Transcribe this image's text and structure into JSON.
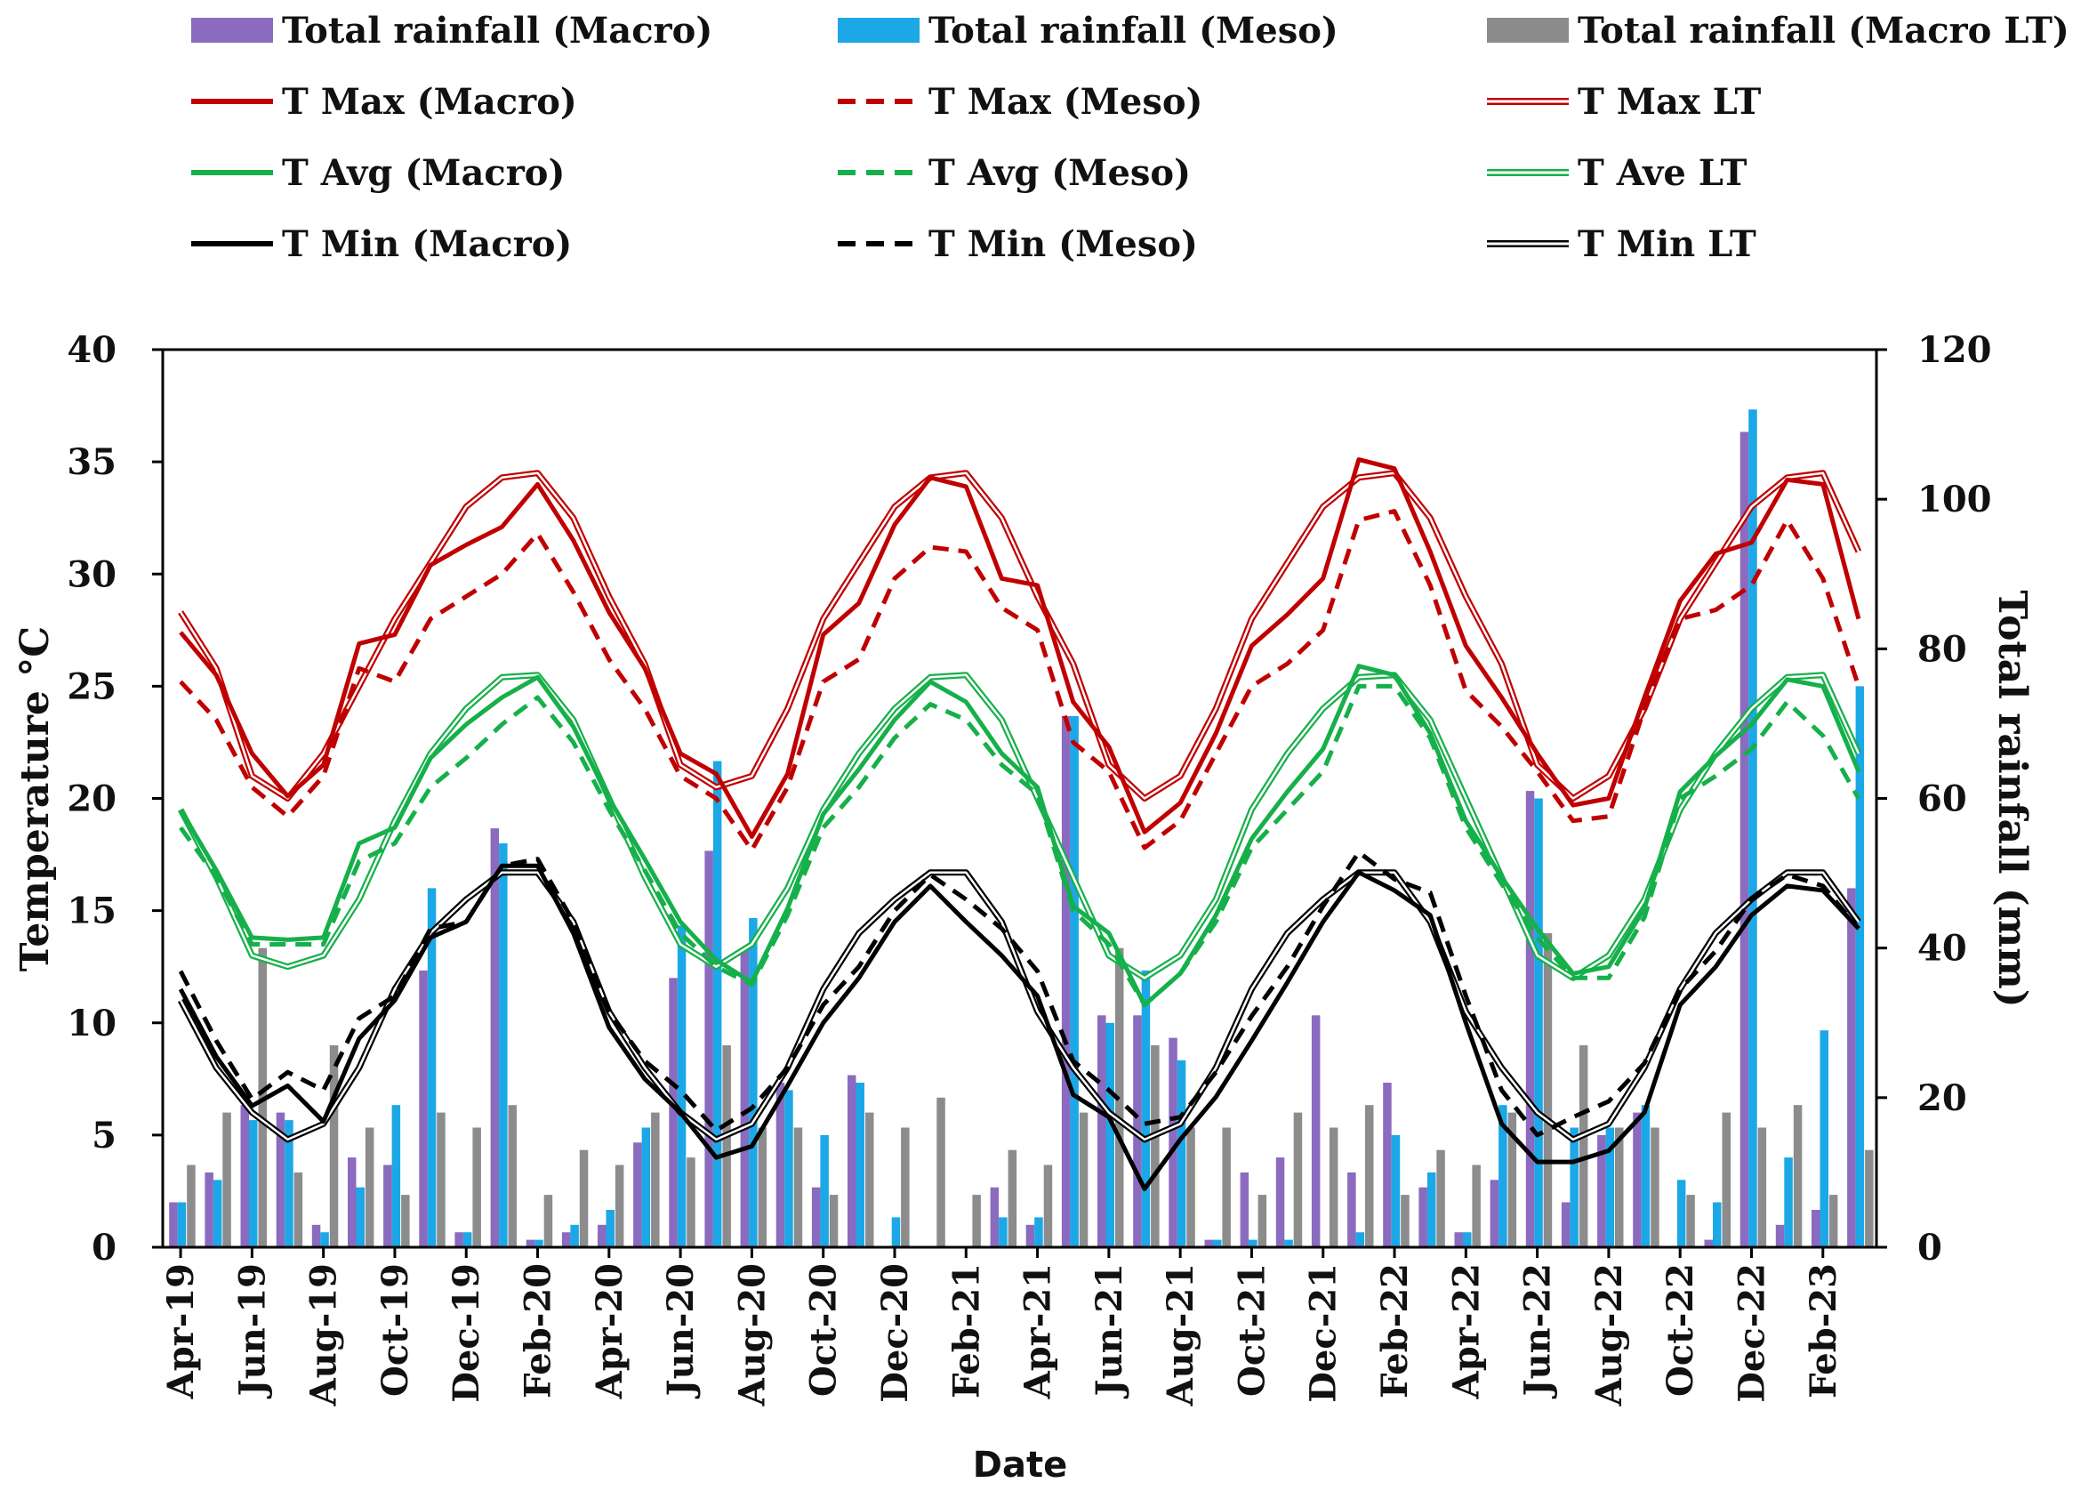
{
  "chart_data": {
    "type": "bar+line",
    "title": "",
    "xlabel": "Date",
    "ylabel_left": "Temperature °C",
    "ylabel_right": "Total rainfall (mm)",
    "ylim_left": [
      0,
      40
    ],
    "ylim_right": [
      0,
      120
    ],
    "yticks_left": [
      "0",
      "5",
      "10",
      "15",
      "20",
      "25",
      "30",
      "35",
      "40"
    ],
    "yticks_right": [
      "0",
      "20",
      "40",
      "60",
      "80",
      "100",
      "120"
    ],
    "categories": [
      "Apr-19",
      "May-19",
      "Jun-19",
      "Jul-19",
      "Aug-19",
      "Sep-19",
      "Oct-19",
      "Nov-19",
      "Dec-19",
      "Jan-20",
      "Feb-20",
      "Mar-20",
      "Apr-20",
      "May-20",
      "Jun-20",
      "Jul-20",
      "Aug-20",
      "Sep-20",
      "Oct-20",
      "Nov-20",
      "Dec-20",
      "Jan-21",
      "Feb-21",
      "Mar-21",
      "Apr-21",
      "May-21",
      "Jun-21",
      "Jul-21",
      "Aug-21",
      "Sep-21",
      "Oct-21",
      "Nov-21",
      "Dec-21",
      "Jan-22",
      "Feb-22",
      "Mar-22",
      "Apr-22",
      "May-22",
      "Jun-22",
      "Jul-22",
      "Aug-22",
      "Sep-22",
      "Oct-22",
      "Nov-22",
      "Dec-22",
      "Jan-23",
      "Feb-23",
      "Mar-23"
    ],
    "x_tick_labels": [
      "Apr-19",
      "Jun-19",
      "Aug-19",
      "Oct-19",
      "Dec-19",
      "Feb-20",
      "Apr-20",
      "Jun-20",
      "Aug-20",
      "Oct-20",
      "Dec-20",
      "Feb-21",
      "Apr-21",
      "Jun-21",
      "Aug-21",
      "Oct-21",
      "Dec-21",
      "Feb-22",
      "Apr-22",
      "Jun-22",
      "Aug-22",
      "Oct-22",
      "Dec-22",
      "Feb-23"
    ],
    "grid": false,
    "legend_position": "top",
    "bar_series": [
      {
        "name": "Total rainfall (Macro)",
        "color": "#8a6bbf",
        "axis": "right",
        "values": [
          6,
          10,
          19,
          18,
          3,
          12,
          11,
          37,
          2,
          56,
          1,
          2,
          3,
          14,
          36,
          53,
          40,
          22,
          8,
          23,
          0,
          0,
          0,
          8,
          3,
          71,
          31,
          31,
          28,
          1,
          10,
          12,
          31,
          10,
          22,
          8,
          2,
          9,
          61,
          6,
          15,
          18,
          0,
          1,
          109,
          3,
          5,
          48
        ]
      },
      {
        "name": "Total rainfall (Meso)",
        "color": "#1ca7e6",
        "axis": "right",
        "values": [
          6,
          9,
          17,
          17,
          2,
          8,
          19,
          48,
          2,
          54,
          1,
          3,
          5,
          16,
          43,
          65,
          44,
          21,
          15,
          22,
          4,
          0,
          0,
          4,
          4,
          71,
          30,
          37,
          25,
          1,
          1,
          1,
          0,
          2,
          15,
          10,
          2,
          19,
          60,
          16,
          16,
          19,
          9,
          6,
          112,
          12,
          29,
          75
        ]
      },
      {
        "name": "Total rainfall (Macro LT)",
        "color": "#8c8c8c",
        "axis": "right",
        "values": [
          11,
          18,
          40,
          10,
          27,
          16,
          7,
          18,
          16,
          19,
          7,
          13,
          11,
          18,
          12,
          27,
          16,
          16,
          7,
          18,
          16,
          20,
          7,
          13,
          11,
          18,
          40,
          27,
          16,
          16,
          7,
          18,
          16,
          19,
          7,
          13,
          11,
          18,
          42,
          27,
          16,
          16,
          7,
          18,
          16,
          19,
          7,
          13
        ]
      }
    ],
    "line_series": [
      {
        "name": "T Max (Macro)",
        "color": "#c00000",
        "style": "solid",
        "values": [
          27.4,
          25.5,
          22.0,
          20.1,
          21.5,
          26.9,
          27.3,
          30.4,
          31.3,
          32.1,
          34.0,
          31.5,
          28.3,
          25.8,
          22.0,
          21.1,
          18.3,
          21.1,
          27.3,
          28.7,
          32.2,
          34.3,
          33.9,
          29.8,
          29.5,
          24.3,
          22.3,
          18.5,
          19.8,
          22.9,
          26.8,
          28.2,
          29.8,
          35.1,
          34.7,
          31.0,
          26.8,
          24.5,
          22.0,
          19.7,
          20.0,
          24.5,
          28.8,
          30.9,
          31.4,
          34.2,
          34.0,
          28.0
        ]
      },
      {
        "name": "T Max (Meso)",
        "color": "#c00000",
        "style": "dashed",
        "values": [
          25.2,
          23.5,
          20.5,
          19.2,
          21.0,
          25.8,
          25.2,
          28.0,
          29.0,
          30.0,
          31.8,
          29.2,
          26.2,
          24.0,
          21.0,
          20.0,
          17.7,
          20.5,
          25.2,
          26.2,
          29.8,
          31.2,
          31.0,
          28.5,
          27.5,
          22.5,
          21.2,
          17.8,
          19.0,
          22.0,
          25.0,
          26.0,
          27.5,
          32.4,
          32.8,
          29.5,
          24.8,
          23.2,
          21.2,
          19.0,
          19.2,
          24.0,
          28.0,
          28.4,
          29.5,
          32.4,
          29.8,
          25.0
        ]
      },
      {
        "name": "T Max LT",
        "color": "#c00000",
        "style": "double",
        "values": [
          28.3,
          25.8,
          21.0,
          20.0,
          22.0,
          25.0,
          28.0,
          30.5,
          33.0,
          34.3,
          34.5,
          32.5,
          29.0,
          26.0,
          21.5,
          20.5,
          21.0,
          24.0,
          28.0,
          30.5,
          33.0,
          34.3,
          34.5,
          32.5,
          29.0,
          26.0,
          21.5,
          20.0,
          21.0,
          24.0,
          28.0,
          30.5,
          33.0,
          34.3,
          34.5,
          32.5,
          29.0,
          26.0,
          21.5,
          20.0,
          21.0,
          24.0,
          28.0,
          30.5,
          33.0,
          34.3,
          34.5,
          31.0
        ]
      },
      {
        "name": "T Avg (Macro)",
        "color": "#16b04a",
        "style": "solid",
        "values": [
          19.5,
          16.8,
          13.8,
          13.7,
          13.8,
          18.0,
          18.7,
          21.8,
          23.3,
          24.5,
          25.4,
          23.2,
          20.0,
          17.3,
          14.5,
          12.8,
          11.8,
          15.1,
          19.3,
          21.3,
          23.5,
          25.2,
          24.3,
          22.0,
          20.5,
          15.2,
          14.0,
          10.8,
          12.2,
          14.8,
          18.2,
          20.3,
          22.2,
          25.9,
          25.5,
          22.9,
          19.0,
          16.5,
          14.2,
          12.2,
          12.5,
          15.1,
          20.3,
          21.9,
          23.3,
          25.3,
          25.0,
          21.2
        ]
      },
      {
        "name": "T Avg (Meso)",
        "color": "#16b04a",
        "style": "dashed",
        "values": [
          18.7,
          16.5,
          13.5,
          13.5,
          13.5,
          17.2,
          18.0,
          20.5,
          21.8,
          23.3,
          24.5,
          22.5,
          19.5,
          16.8,
          14.0,
          12.5,
          11.7,
          14.8,
          18.7,
          20.5,
          22.7,
          24.2,
          23.5,
          21.5,
          20.2,
          15.0,
          13.5,
          10.8,
          12.2,
          14.5,
          17.8,
          19.5,
          21.2,
          25.0,
          25.0,
          22.7,
          18.7,
          16.2,
          13.8,
          12.0,
          12.0,
          14.7,
          20.0,
          21.0,
          22.2,
          24.3,
          22.8,
          20.0
        ]
      },
      {
        "name": "T Ave LT",
        "color": "#16b04a",
        "style": "double",
        "values": [
          19.5,
          16.5,
          13.0,
          12.5,
          13.0,
          15.5,
          19.0,
          22.0,
          24.0,
          25.4,
          25.5,
          23.5,
          20.0,
          16.5,
          13.5,
          12.5,
          13.5,
          16.0,
          19.5,
          22.0,
          24.0,
          25.4,
          25.5,
          23.5,
          20.0,
          16.5,
          13.0,
          12.0,
          13.0,
          15.5,
          19.5,
          22.0,
          24.0,
          25.4,
          25.5,
          23.5,
          20.0,
          16.5,
          13.0,
          12.0,
          13.0,
          15.5,
          19.5,
          22.0,
          24.0,
          25.4,
          25.5,
          22.0
        ]
      },
      {
        "name": "T Min (Macro)",
        "color": "#000000",
        "style": "solid",
        "values": [
          11.5,
          8.5,
          6.3,
          7.2,
          5.6,
          9.3,
          11.0,
          13.8,
          14.5,
          17.0,
          17.0,
          14.0,
          9.8,
          7.5,
          6.0,
          4.0,
          4.5,
          7.2,
          10.0,
          12.0,
          14.5,
          16.1,
          14.5,
          13.0,
          11.2,
          6.8,
          5.8,
          2.6,
          4.8,
          6.7,
          9.2,
          11.8,
          14.5,
          16.7,
          15.9,
          14.8,
          10.0,
          5.5,
          3.8,
          3.8,
          4.3,
          6.0,
          10.8,
          12.5,
          14.8,
          16.1,
          15.9,
          14.2
        ]
      },
      {
        "name": "T Min (Meso)",
        "color": "#000000",
        "style": "dashed",
        "values": [
          12.3,
          9.2,
          6.6,
          7.8,
          7.0,
          10.2,
          11.2,
          14.2,
          14.5,
          17.0,
          17.3,
          14.5,
          10.5,
          8.3,
          7.0,
          5.2,
          6.2,
          8.0,
          10.8,
          12.5,
          15.0,
          16.6,
          15.5,
          14.2,
          12.3,
          8.3,
          7.0,
          5.5,
          5.8,
          7.8,
          10.3,
          12.5,
          15.2,
          17.6,
          16.4,
          15.8,
          11.2,
          7.0,
          5.0,
          5.8,
          6.5,
          8.2,
          11.5,
          13.2,
          15.5,
          16.6,
          16.1,
          14.2
        ]
      },
      {
        "name": "T Min LT",
        "color": "#000000",
        "style": "double",
        "values": [
          11.0,
          8.0,
          6.0,
          4.8,
          5.5,
          8.0,
          11.5,
          14.0,
          15.5,
          16.7,
          16.7,
          14.5,
          10.5,
          8.0,
          6.0,
          4.8,
          5.5,
          8.0,
          11.5,
          14.0,
          15.5,
          16.7,
          16.7,
          14.5,
          10.5,
          8.0,
          6.0,
          4.8,
          5.5,
          8.0,
          11.5,
          14.0,
          15.5,
          16.7,
          16.7,
          14.5,
          10.5,
          8.0,
          6.0,
          4.8,
          5.5,
          8.0,
          11.5,
          14.0,
          15.5,
          16.7,
          16.7,
          14.5
        ]
      }
    ]
  }
}
